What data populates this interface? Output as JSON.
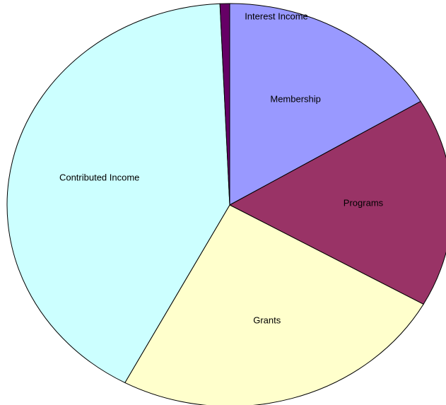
{
  "chart_data": {
    "type": "pie",
    "categories": [
      "Membership",
      "Programs",
      "Grants",
      "Contributed Income",
      "Interest Income"
    ],
    "values": [
      16.4,
      16.8,
      24.6,
      41.5,
      0.7
    ],
    "colors": [
      "#9999ff",
      "#993366",
      "#ffffcc",
      "#ccffff",
      "#660066"
    ]
  }
}
